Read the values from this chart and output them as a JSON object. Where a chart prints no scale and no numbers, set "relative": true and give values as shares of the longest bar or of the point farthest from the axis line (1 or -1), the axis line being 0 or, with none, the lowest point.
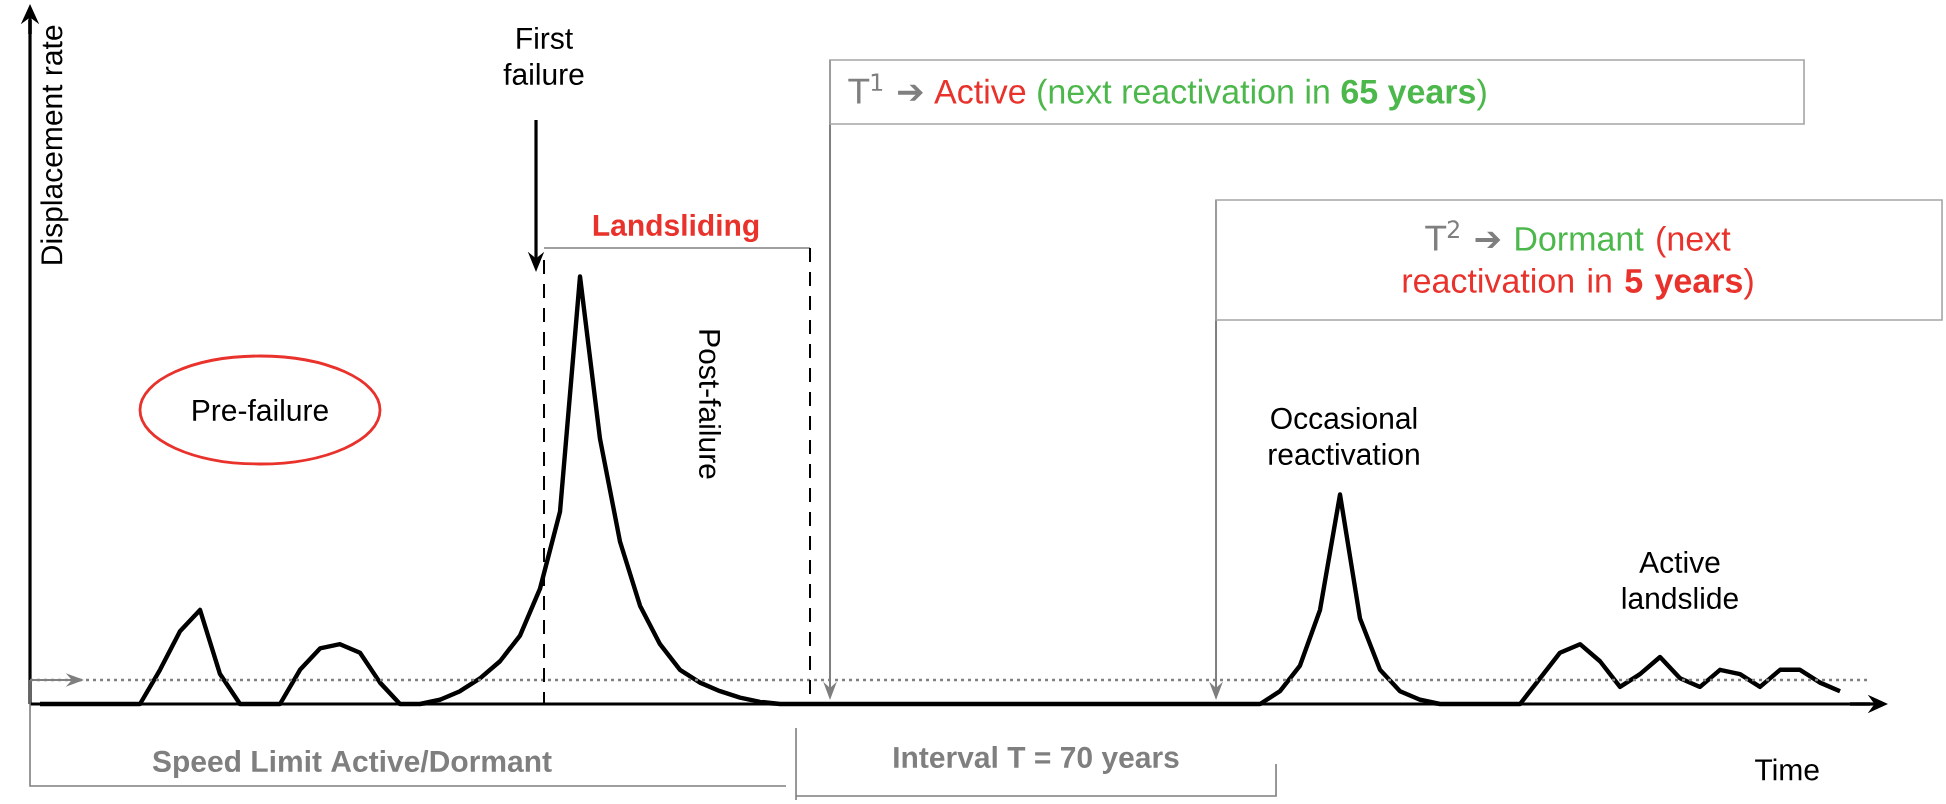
{
  "chart_data": {
    "type": "line",
    "relative": true,
    "xlabel": "Time",
    "ylabel": "Displacement rate",
    "categories": [
      null,
      null,
      null,
      null,
      null,
      null,
      null,
      null,
      null,
      null,
      null,
      null,
      null,
      null,
      null,
      null,
      null,
      null,
      null,
      null,
      null,
      null,
      null,
      null,
      null,
      null,
      null,
      null,
      null,
      null,
      null,
      null,
      null,
      null,
      null,
      null,
      null,
      null,
      null,
      null,
      null,
      null,
      null,
      null,
      null,
      null,
      null,
      null,
      null,
      null,
      null,
      null,
      null,
      null,
      null,
      null,
      null,
      null,
      null,
      null,
      null,
      null,
      null,
      null,
      null,
      null,
      null,
      null,
      null,
      null,
      null,
      null,
      null,
      null,
      null,
      null,
      null,
      null,
      null,
      null,
      null,
      null,
      null,
      null,
      null,
      null,
      null,
      null,
      null,
      null,
      null
    ],
    "series": [
      {
        "color": "#000000",
        "values": [
          0,
          0,
          0,
          0,
          0,
          0,
          0.08,
          0.17,
          0.22,
          0.07,
          0,
          0,
          0,
          0.08,
          0.13,
          0.14,
          0.12,
          0.05,
          0,
          0,
          0.01,
          0.03,
          0.06,
          0.1,
          0.16,
          0.27,
          0.45,
          1,
          0.62,
          0.38,
          0.23,
          0.14,
          0.08,
          0.05,
          0.03,
          0.015,
          0.005,
          0,
          0,
          0,
          0,
          0,
          0,
          0,
          0,
          0,
          0,
          0,
          0,
          0,
          0,
          0,
          0,
          0,
          0,
          0,
          0,
          0,
          0,
          0,
          0,
          0,
          0.03,
          0.09,
          0.22,
          0.49,
          0.2,
          0.08,
          0.03,
          0.01,
          0,
          0,
          0,
          0,
          0,
          0.06,
          0.12,
          0.14,
          0.1,
          0.04,
          0.07,
          0.11,
          0.06,
          0.04,
          0.08,
          0.07,
          0.04,
          0.08,
          0.08,
          0.05,
          0.03
        ]
      }
    ],
    "line_style": "solid",
    "ref_lines": [
      {
        "axis": "y",
        "value": 0.056,
        "label": "Speed Limit Active/Dormant",
        "color": "#808080",
        "line_style": "dotted"
      }
    ],
    "annotations": [
      "First failure",
      "Landsliding",
      "Post-failure",
      "Pre-failure",
      "T$^{1}$ ➔",
      "Active",
      "(next reactivation in **65 years**)",
      "T$^{2}$ ➔",
      "Dormant",
      "(next reactivation in **5 years**)",
      "Occasional reactivation",
      "Active landslide",
      "Interval T = 70 years"
    ]
  }
}
